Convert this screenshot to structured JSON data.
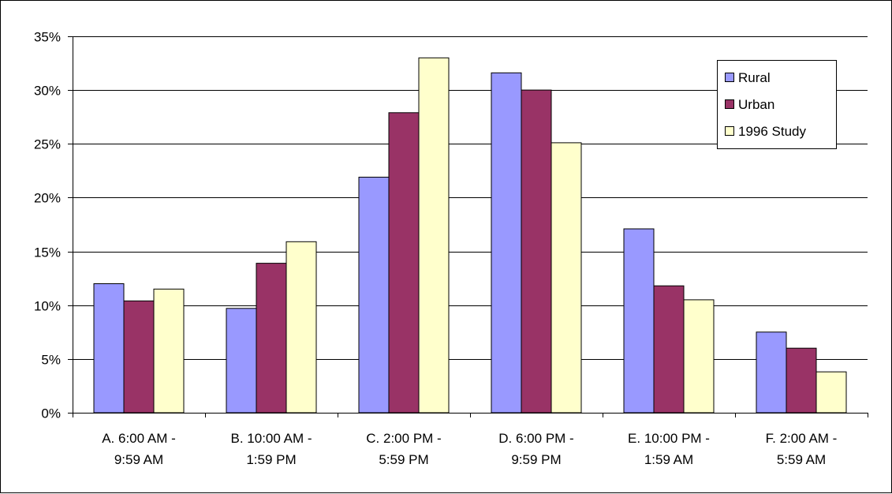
{
  "chart_data": {
    "type": "bar",
    "categories": [
      [
        "A. 6:00 AM -",
        "9:59 AM"
      ],
      [
        "B. 10:00 AM -",
        "1:59 PM"
      ],
      [
        "C. 2:00 PM -",
        "5:59 PM"
      ],
      [
        "D. 6:00 PM -",
        "9:59 PM"
      ],
      [
        "E. 10:00 PM -",
        "1:59 AM"
      ],
      [
        "F. 2:00 AM -",
        "5:59 AM"
      ]
    ],
    "series": [
      {
        "name": "Rural",
        "color": "#9999ff",
        "values": [
          12.0,
          9.7,
          21.9,
          31.6,
          17.1,
          7.5
        ]
      },
      {
        "name": "Urban",
        "color": "#993366",
        "values": [
          10.4,
          13.9,
          27.9,
          30.0,
          11.8,
          6.0
        ]
      },
      {
        "name": "1996 Study",
        "color": "#ffffcc",
        "values": [
          11.5,
          15.9,
          33.0,
          25.1,
          10.5,
          3.8
        ]
      }
    ],
    "yticks": [
      "0%",
      "5%",
      "10%",
      "15%",
      "20%",
      "25%",
      "30%",
      "35%"
    ],
    "ylim": [
      0,
      35
    ],
    "ytick_step": 5,
    "grid": true,
    "legend": "top-right",
    "title": "",
    "xlabel": "",
    "ylabel": ""
  }
}
